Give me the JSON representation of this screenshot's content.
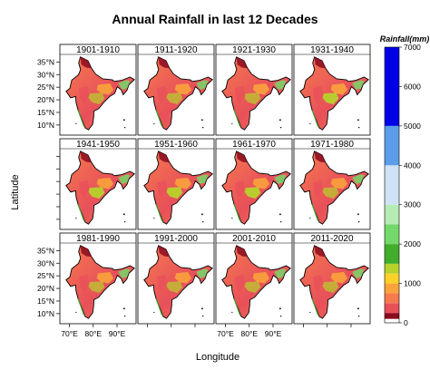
{
  "chart_data": {
    "type": "heatmap",
    "title": "Annual Rainfall in last 12 Decades",
    "xlabel": "Longitude",
    "ylabel": "Latitude",
    "panels": [
      "1901-1910",
      "1911-1920",
      "1921-1930",
      "1931-1940",
      "1941-1950",
      "1951-1960",
      "1961-1970",
      "1971-1980",
      "1981-1990",
      "1991-2000",
      "2001-2010",
      "2011-2020"
    ],
    "x_ticks": [
      "70°E",
      "80°E",
      "90°E"
    ],
    "y_ticks": [
      "35°N",
      "30°N",
      "25°N",
      "20°N",
      "15°N",
      "10°N"
    ],
    "lat_values": [
      35,
      30,
      25,
      20,
      15,
      10
    ],
    "lon_values": [
      70,
      80,
      90
    ],
    "xlim": [
      66,
      98
    ],
    "ylim": [
      6,
      38
    ],
    "legend": {
      "title": "Rainfall(mm)",
      "placement": "right",
      "range": [
        0,
        7000
      ],
      "ticks": [
        0,
        1000,
        2000,
        3000,
        4000,
        5000,
        6000,
        7000
      ],
      "bins": [
        {
          "from": 0,
          "to": 100,
          "color": "#ffffff"
        },
        {
          "from": 100,
          "to": 250,
          "color": "#8b0a1e"
        },
        {
          "from": 250,
          "to": 500,
          "color": "#e8505a"
        },
        {
          "from": 500,
          "to": 750,
          "color": "#f57a4e"
        },
        {
          "from": 750,
          "to": 1000,
          "color": "#f9a33c"
        },
        {
          "from": 1000,
          "to": 1250,
          "color": "#fcd12a"
        },
        {
          "from": 1250,
          "to": 1500,
          "color": "#b7d22c"
        },
        {
          "from": 1500,
          "to": 2000,
          "color": "#41ad2b"
        },
        {
          "from": 2000,
          "to": 2500,
          "color": "#74d86a"
        },
        {
          "from": 2500,
          "to": 3000,
          "color": "#b6ebb4"
        },
        {
          "from": 3000,
          "to": 4000,
          "color": "#cfe3f5"
        },
        {
          "from": 4000,
          "to": 5000,
          "color": "#5b9de8"
        },
        {
          "from": 5000,
          "to": 7000,
          "color": "#0000e6"
        }
      ]
    }
  }
}
